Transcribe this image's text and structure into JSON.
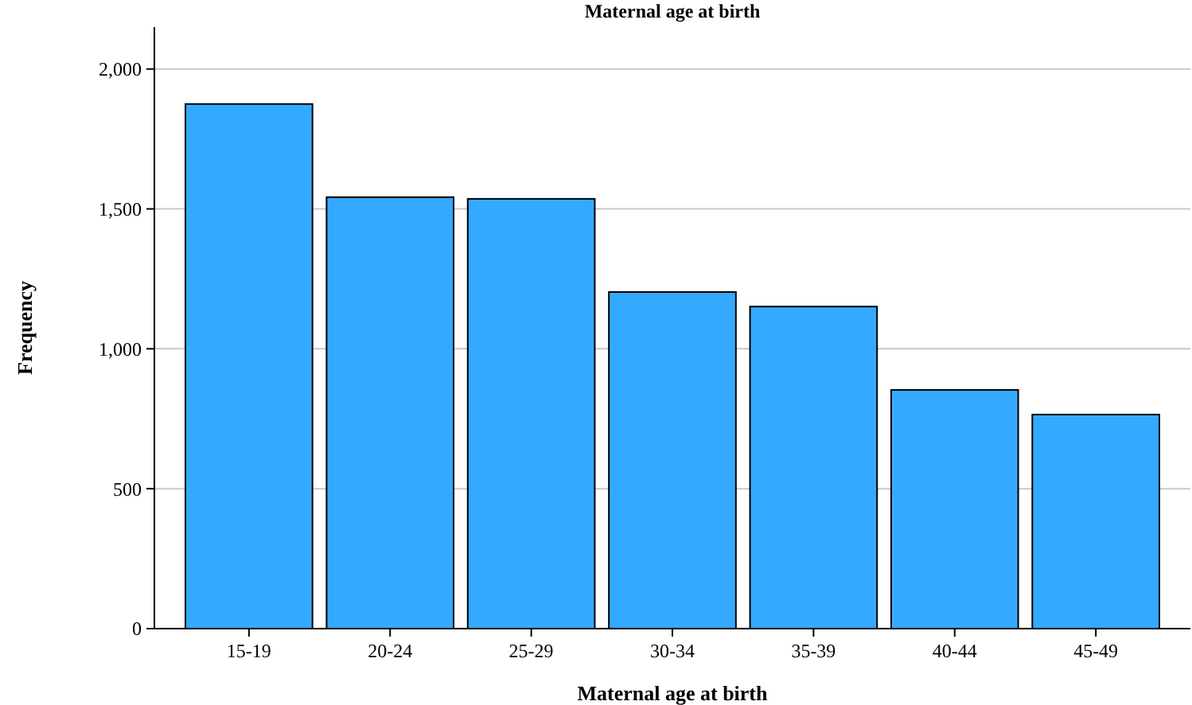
{
  "chart_data": {
    "type": "bar",
    "title": "Maternal age at birth",
    "xlabel": "Maternal age at birth",
    "ylabel": "Frequency",
    "categories": [
      "15-19",
      "20-24",
      "25-29",
      "30-34",
      "35-39",
      "40-44",
      "45-49"
    ],
    "values": [
      1875,
      1542,
      1536,
      1203,
      1151,
      853,
      765
    ],
    "color": "#33aaff",
    "ylim": [
      0,
      2150
    ],
    "yticks": [
      0,
      {
        "value": 500,
        "label": "500"
      },
      {
        "value": 1000,
        "label": "1,000"
      },
      {
        "value": 1500,
        "label": "1,500"
      },
      {
        "value": 2000,
        "label": "2,000"
      }
    ],
    "grid": "y"
  }
}
